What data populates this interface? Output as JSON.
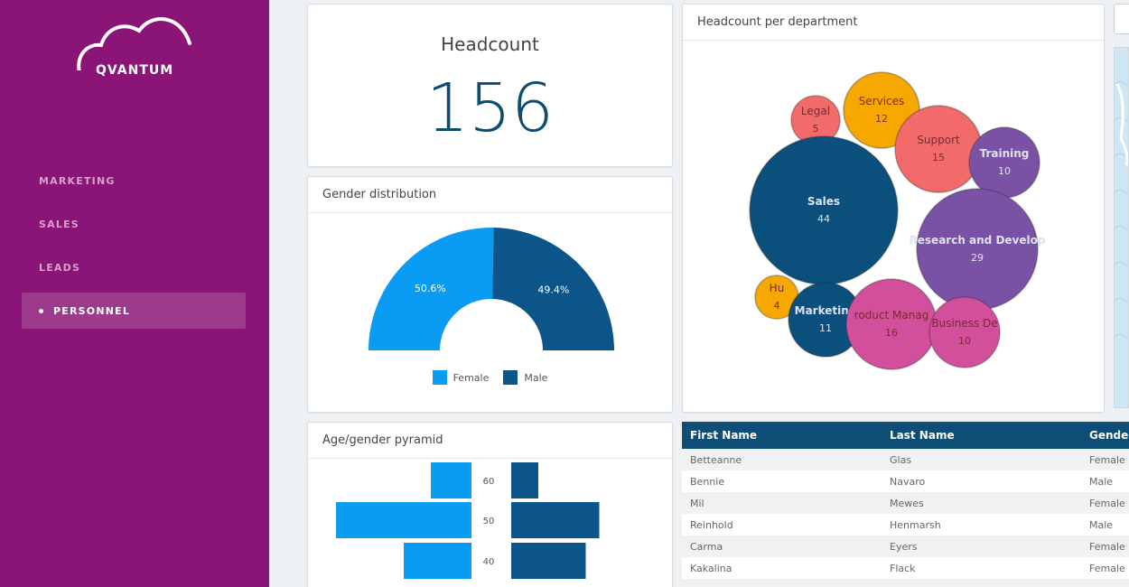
{
  "brand": {
    "name": "QVANTUM"
  },
  "nav": {
    "items": [
      {
        "label": "MARKETING",
        "active": false
      },
      {
        "label": "SALES",
        "active": false
      },
      {
        "label": "LEADS",
        "active": false
      },
      {
        "label": "PERSONNEL",
        "active": true
      }
    ]
  },
  "kpi": {
    "title": "Headcount",
    "value": "156"
  },
  "gender": {
    "title": "Gender distribution",
    "colors": {
      "female": "#0a9bf2",
      "male": "#0b5589"
    },
    "slices": [
      {
        "name": "Female",
        "pct": 50.6,
        "label": "50.6%"
      },
      {
        "name": "Male",
        "pct": 49.4,
        "label": "49.4%"
      }
    ],
    "legend": [
      "Female",
      "Male"
    ]
  },
  "department": {
    "title": "Headcount per department",
    "bubbles": [
      {
        "name": "Legal",
        "value": 5,
        "color": "#f26a6a"
      },
      {
        "name": "Services",
        "value": 12,
        "color": "#f7a800"
      },
      {
        "name": "Support",
        "value": 15,
        "color": "#f26a6a"
      },
      {
        "name": "Training",
        "value": 10,
        "color": "#7a52a5"
      },
      {
        "name": "Sales",
        "value": 44,
        "color": "#0b4f7d"
      },
      {
        "name": "Research and Develop",
        "value": 29,
        "color": "#7a52a5"
      },
      {
        "name": "Hu",
        "value": 4,
        "color": "#f7a800"
      },
      {
        "name": "Marketing",
        "value": 11,
        "color": "#0b4f7d"
      },
      {
        "name": "roduct Manag",
        "value": 16,
        "color": "#d2509b"
      },
      {
        "name": "Business De",
        "value": 10,
        "color": "#d2509b"
      }
    ]
  },
  "pyramid": {
    "title": "Age/gender pyramid",
    "ages": [
      "60",
      "50",
      "40"
    ]
  },
  "chart_data": [
    {
      "type": "pie",
      "title": "Gender distribution",
      "categories": [
        "Female",
        "Male"
      ],
      "values": [
        50.6,
        49.4
      ]
    },
    {
      "type": "scatter",
      "title": "Headcount per department",
      "categories": [
        "Legal",
        "Services",
        "Support",
        "Training",
        "Sales",
        "Research and Develop",
        "Hu",
        "Marketing",
        "roduct Manag",
        "Business De"
      ],
      "values": [
        5,
        12,
        15,
        10,
        44,
        29,
        4,
        11,
        16,
        10
      ]
    },
    {
      "type": "bar",
      "title": "Age/gender pyramid",
      "categories": [
        "60",
        "50",
        "40"
      ],
      "series": [
        {
          "name": "Female",
          "values": [
            3,
            10,
            5
          ]
        },
        {
          "name": "Male",
          "values": [
            2,
            6.5,
            5.5
          ]
        }
      ]
    }
  ],
  "table": {
    "columns": [
      "First Name",
      "Last Name",
      "Gender"
    ],
    "rows": [
      [
        "Betteanne",
        "Glas",
        "Female"
      ],
      [
        "Bennie",
        "Navaro",
        "Male"
      ],
      [
        "Mil",
        "Mewes",
        "Female"
      ],
      [
        "Reinhold",
        "Henmarsh",
        "Male"
      ],
      [
        "Carma",
        "Eyers",
        "Female"
      ],
      [
        "Kakalina",
        "Flack",
        "Female"
      ],
      [
        "",
        "",
        ""
      ]
    ]
  }
}
